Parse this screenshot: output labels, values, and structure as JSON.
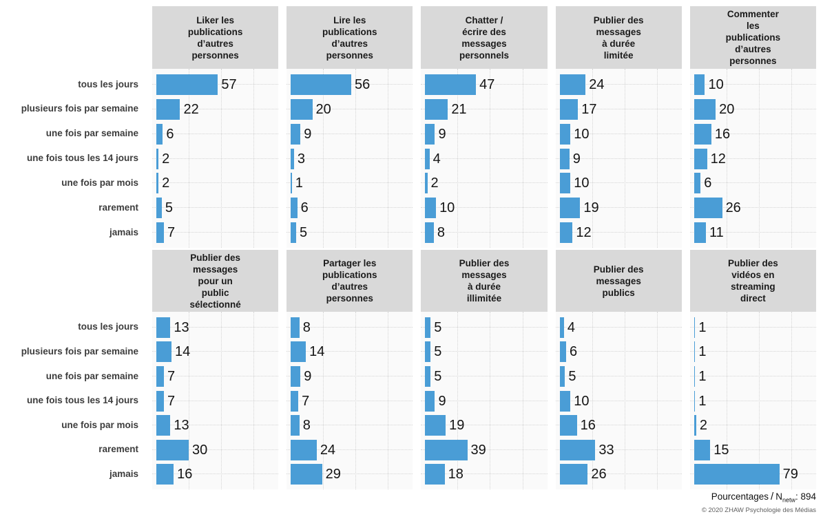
{
  "colors": {
    "bar": "#4A9DD6",
    "strip_background": "#D9D9D9",
    "panel_background": "#FAFAFA",
    "gridline": "#D4D4D4",
    "category_label": "#3C3C3C",
    "value_label": "#141414"
  },
  "categories": [
    "tous les jours",
    "plusieurs fois par semaine",
    "une fois par semaine",
    "une fois tous les 14 jours",
    "une fois par mois",
    "rarement",
    "jamais"
  ],
  "panels": [
    {
      "title": "Liker les\npublications\nd’autres\npersonnes"
    },
    {
      "title": "Lire les\npublications\nd’autres\npersonnes"
    },
    {
      "title": "Chatter /\nécrire des\nmessages\npersonnels"
    },
    {
      "title": "Publier des\nmessages\nà durée\nlimitée"
    },
    {
      "title": "Commenter\nles\npublications\nd’autres\npersonnes"
    },
    {
      "title": "Publier des\nmessages\npour un\npublic\nsélectionné"
    },
    {
      "title": "Partager les\npublications\nd’autres\npersonnes"
    },
    {
      "title": "Publier des\nmessages\nà durée\nillimitée"
    },
    {
      "title": "Publier des\nmessages\npublics"
    },
    {
      "title": "Publier des\nvidéos en\nstreaming\ndirect"
    }
  ],
  "footer": {
    "metric_prefix": "Pourcentages",
    "slash": "/",
    "n_label": "N",
    "n_sub": "netw",
    "n_value": ": 894",
    "copyright": "© 2020 ZHAW Psychologie des Médias"
  },
  "chart_data": {
    "type": "bar",
    "orientation": "horizontal",
    "value_unit": "percent",
    "title": "",
    "xlabel": "",
    "ylabel": "",
    "xlim": [
      0,
      113
    ],
    "gridlines_x": [
      30,
      60,
      90
    ],
    "grid_style": "dotted",
    "bar_labels": true,
    "facet_layout": "2 rows x 5 columns",
    "categories": [
      "tous les jours",
      "plusieurs fois par semaine",
      "une fois par semaine",
      "une fois tous les 14 jours",
      "une fois par mois",
      "rarement",
      "jamais"
    ],
    "series": [
      {
        "name": "Liker les publications d’autres personnes",
        "values": [
          57,
          22,
          6,
          2,
          2,
          5,
          7
        ]
      },
      {
        "name": "Lire les publications d’autres personnes",
        "values": [
          56,
          20,
          9,
          3,
          1,
          6,
          5
        ]
      },
      {
        "name": "Chatter / écrire des messages personnels",
        "values": [
          47,
          21,
          9,
          4,
          2,
          10,
          8
        ]
      },
      {
        "name": "Publier des messages à durée limitée",
        "values": [
          24,
          17,
          10,
          9,
          10,
          19,
          12
        ]
      },
      {
        "name": "Commenter les publications d’autres personnes",
        "values": [
          10,
          20,
          16,
          12,
          6,
          26,
          11
        ]
      },
      {
        "name": "Publier des messages pour un public sélectionné",
        "values": [
          13,
          14,
          7,
          7,
          13,
          30,
          16
        ]
      },
      {
        "name": "Partager les publications d’autres personnes",
        "values": [
          8,
          14,
          9,
          7,
          8,
          24,
          29
        ]
      },
      {
        "name": "Publier des messages à durée illimitée",
        "values": [
          5,
          5,
          5,
          9,
          19,
          39,
          18
        ]
      },
      {
        "name": "Publier des messages publics",
        "values": [
          4,
          6,
          5,
          10,
          16,
          33,
          26
        ]
      },
      {
        "name": "Publier des vidéos en streaming direct",
        "values": [
          1,
          1,
          1,
          1,
          2,
          15,
          79
        ]
      }
    ],
    "footnote": "Pourcentages / Nnetw: 894",
    "copyright": "© 2020 ZHAW Psychologie des Médias"
  }
}
